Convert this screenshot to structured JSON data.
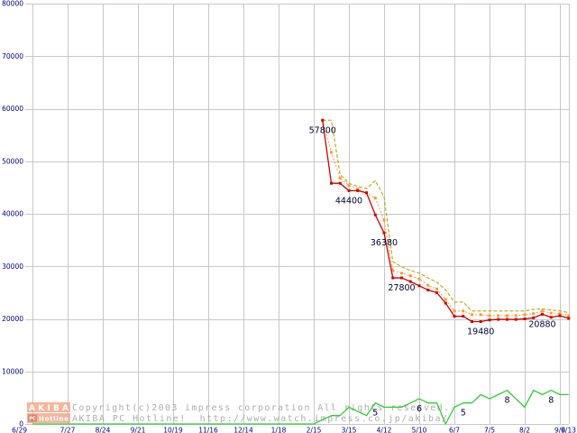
{
  "chart_data": {
    "type": "line",
    "categories": [
      "6/29",
      "",
      "",
      "",
      "7/27",
      "",
      "",
      "",
      "8/24",
      "",
      "",
      "",
      "9/21",
      "",
      "",
      "",
      "10/19",
      "",
      "",
      "",
      "11/16",
      "",
      "",
      "",
      "12/14",
      "",
      "",
      "",
      "1/18",
      "",
      "",
      "",
      "2/15",
      "",
      "",
      "",
      "3/15",
      "",
      "",
      "",
      "4/12",
      "",
      "",
      "",
      "5/10",
      "",
      "",
      "",
      "6/7",
      "",
      "",
      "",
      "7/5",
      "",
      "",
      "",
      "8/2",
      "",
      "",
      "",
      "9/6",
      "9/13"
    ],
    "yticks": [
      0,
      10000,
      20000,
      30000,
      40000,
      50000,
      60000,
      70000,
      80000
    ],
    "ylim": [
      0,
      80000
    ],
    "y2lim": [
      0,
      100
    ],
    "grid": true,
    "series": [
      {
        "color": "#b0a000",
        "style": "dashed",
        "axis": "y",
        "markers": false,
        "values": [
          null,
          null,
          null,
          null,
          null,
          null,
          null,
          null,
          null,
          null,
          null,
          null,
          null,
          null,
          null,
          null,
          null,
          null,
          null,
          null,
          null,
          null,
          null,
          null,
          null,
          null,
          null,
          null,
          null,
          null,
          null,
          null,
          null,
          57800,
          57800,
          47500,
          45800,
          45200,
          44800,
          46300,
          43200,
          30900,
          29900,
          29200,
          28700,
          27800,
          27000,
          25500,
          23200,
          23200,
          21500,
          21500,
          21500,
          21500,
          21500,
          21500,
          21500,
          21800,
          21900,
          21700,
          21500,
          21200
        ]
      },
      {
        "color": "#ff9933",
        "style": "dotted",
        "axis": "y",
        "markers": true,
        "values": [
          null,
          null,
          null,
          null,
          null,
          null,
          null,
          null,
          null,
          null,
          null,
          null,
          null,
          null,
          null,
          null,
          null,
          null,
          null,
          null,
          null,
          null,
          null,
          null,
          null,
          null,
          null,
          null,
          null,
          null,
          null,
          null,
          null,
          57800,
          51700,
          46800,
          45400,
          44700,
          44000,
          43000,
          38800,
          29200,
          28700,
          28200,
          27600,
          26400,
          25700,
          23700,
          21500,
          21500,
          20800,
          20800,
          20600,
          20600,
          20600,
          20600,
          20800,
          21000,
          21500,
          21100,
          21000,
          20600
        ]
      },
      {
        "color": "#cc0000",
        "style": "solid",
        "axis": "y",
        "markers": true,
        "values": [
          null,
          null,
          null,
          null,
          null,
          null,
          null,
          null,
          null,
          null,
          null,
          null,
          null,
          null,
          null,
          null,
          null,
          null,
          null,
          null,
          null,
          null,
          null,
          null,
          null,
          null,
          null,
          null,
          null,
          null,
          null,
          null,
          null,
          57800,
          45800,
          45800,
          44400,
          44400,
          44000,
          39800,
          36380,
          27800,
          27800,
          27100,
          26300,
          25500,
          25000,
          23000,
          20500,
          20500,
          19480,
          19480,
          19800,
          19900,
          19900,
          19900,
          20000,
          20200,
          20880,
          20300,
          20600,
          20100
        ]
      },
      {
        "color": "#33cc33",
        "style": "solid",
        "axis": "y2",
        "markers": false,
        "values": [
          0,
          0,
          0,
          0,
          0,
          0,
          0,
          0,
          0,
          0,
          0,
          0,
          0,
          0,
          0,
          0,
          0,
          0,
          0,
          0,
          0,
          0,
          0,
          0,
          0,
          0,
          0,
          0,
          0,
          0,
          0,
          0,
          0,
          1,
          2,
          2,
          4,
          3,
          2,
          5,
          4,
          4,
          4,
          5,
          6,
          5,
          5,
          0,
          4,
          5,
          5,
          7,
          6,
          7,
          8,
          6,
          4,
          8,
          7,
          8,
          7,
          7
        ]
      }
    ],
    "data_labels": [
      {
        "series": 2,
        "index": 33,
        "text": "57800"
      },
      {
        "series": 2,
        "index": 36,
        "text": "44400"
      },
      {
        "series": 2,
        "index": 40,
        "text": "36380"
      },
      {
        "series": 2,
        "index": 42,
        "text": "27800"
      },
      {
        "series": 2,
        "index": 51,
        "text": "19480"
      },
      {
        "series": 2,
        "index": 58,
        "text": "20880"
      },
      {
        "series": 3,
        "index": 39,
        "text": "5"
      },
      {
        "series": 3,
        "index": 44,
        "text": "6"
      },
      {
        "series": 3,
        "index": 49,
        "text": "5"
      },
      {
        "series": 3,
        "index": 54,
        "text": "8"
      },
      {
        "series": 3,
        "index": 59,
        "text": "8"
      }
    ]
  },
  "watermark": {
    "logo_title": "AKIBA",
    "logo_pc": "PC",
    "logo_sub": "Hotline",
    "copyright": "Copyright(c)2003 impress corporation All rights reserved.",
    "site": "AKIBA PC Hotline!  http://www.watch.impress.co.jp/akiba/"
  }
}
